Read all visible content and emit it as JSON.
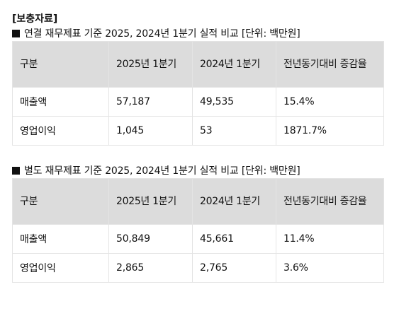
{
  "supplement_title": "[보충자료]",
  "sections": [
    {
      "caption": "연결 재무제표 기준 2025, 2024년 1분기 실적 비교 [단위: 백만원]",
      "headers": [
        "구분",
        "2025년 1분기",
        "2024년 1분기",
        "전년동기대비 증감율"
      ],
      "rows": [
        {
          "label": "매출액",
          "q1_2025": "57,187",
          "q1_2024": "49,535",
          "yoy": "15.4%"
        },
        {
          "label": "영업이익",
          "q1_2025": "1,045",
          "q1_2024": "53",
          "yoy": "1871.7%"
        }
      ]
    },
    {
      "caption": "별도 재무제표 기준 2025, 2024년 1분기 실적 비교 [단위: 백만원]",
      "headers": [
        "구분",
        "2025년 1분기",
        "2024년 1분기",
        "전년동기대비 증감율"
      ],
      "rows": [
        {
          "label": "매출액",
          "q1_2025": "50,849",
          "q1_2024": "45,661",
          "yoy": "11.4%"
        },
        {
          "label": "영업이익",
          "q1_2025": "2,865",
          "q1_2024": "2,765",
          "yoy": "3.6%"
        }
      ]
    }
  ]
}
